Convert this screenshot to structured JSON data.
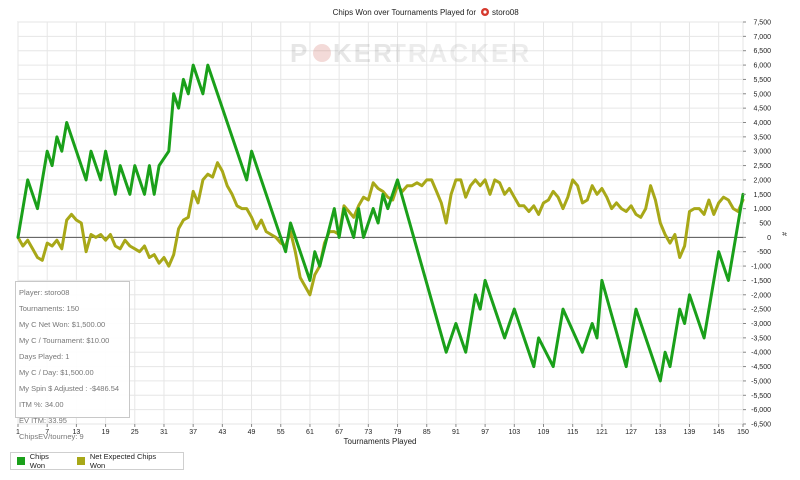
{
  "title": "Chips Won over Tournaments Played for",
  "player_name": "storo08",
  "watermark": {
    "left": "P",
    "middle": "KER",
    "right": "TRACKER"
  },
  "xlabel": "Tournaments Played",
  "y_unit": "#",
  "colors": {
    "chips_won": "#1aa01a",
    "net_expected": "#a8a818",
    "zero_line": "#555555",
    "grid": "#e6e6e6"
  },
  "stats": [
    "Player: storo08",
    "Tournaments: 150",
    "My C Net Won: $1,500.00",
    "My C / Tournament: $10.00",
    "Days Played: 1",
    "My C / Day: $1,500.00",
    "My Spin $ Adjusted : -$486.54",
    "ITM %: 34.00",
    "EV ITM: 33.95",
    "ChipsEV/tourney: 9"
  ],
  "legend": [
    {
      "label": "Chips Won",
      "color": "#1aa01a"
    },
    {
      "label": "Net Expected Chips Won",
      "color": "#a8a818"
    }
  ],
  "chart_data": {
    "type": "line",
    "xlim": [
      1,
      150
    ],
    "ylim": [
      -6500,
      7500
    ],
    "x_ticks": [
      "1",
      "7",
      "13",
      "19",
      "25",
      "31",
      "37",
      "43",
      "49",
      "55",
      "61",
      "67",
      "73",
      "79",
      "85",
      "91",
      "97",
      "103",
      "109",
      "115",
      "121",
      "127",
      "133",
      "139",
      "145",
      "150"
    ],
    "y_ticks": [
      "7,500",
      "7,000",
      "6,500",
      "6,000",
      "5,500",
      "5,000",
      "4,500",
      "4,000",
      "3,500",
      "3,000",
      "2,500",
      "2,000",
      "1,500",
      "1,000",
      "500",
      "0",
      "-500",
      "-1,000",
      "-1,500",
      "-2,000",
      "-2,500",
      "-3,000",
      "-3,500",
      "-4,000",
      "-4,500",
      "-5,000",
      "-5,500",
      "-6,000",
      "-6,500"
    ],
    "series": [
      {
        "name": "Chips Won",
        "points": [
          [
            1,
            0
          ],
          [
            3,
            2000
          ],
          [
            5,
            1000
          ],
          [
            7,
            3000
          ],
          [
            8,
            2500
          ],
          [
            9,
            3500
          ],
          [
            10,
            3000
          ],
          [
            11,
            4000
          ],
          [
            15,
            2000
          ],
          [
            16,
            3000
          ],
          [
            18,
            2000
          ],
          [
            19,
            3000
          ],
          [
            21,
            1500
          ],
          [
            22,
            2500
          ],
          [
            24,
            1500
          ],
          [
            25,
            2500
          ],
          [
            27,
            1500
          ],
          [
            28,
            2500
          ],
          [
            29,
            1500
          ],
          [
            30,
            2500
          ],
          [
            32,
            3000
          ],
          [
            33,
            5000
          ],
          [
            34,
            4500
          ],
          [
            35,
            5500
          ],
          [
            36,
            5000
          ],
          [
            37,
            6000
          ],
          [
            38,
            5500
          ],
          [
            39,
            5000
          ],
          [
            40,
            6000
          ],
          [
            48,
            2000
          ],
          [
            49,
            3000
          ],
          [
            56,
            -500
          ],
          [
            57,
            500
          ],
          [
            61,
            -1500
          ],
          [
            62,
            -500
          ],
          [
            63,
            -1000
          ],
          [
            66,
            1000
          ],
          [
            67,
            0
          ],
          [
            68,
            1000
          ],
          [
            70,
            0
          ],
          [
            71,
            1000
          ],
          [
            72,
            0
          ],
          [
            74,
            1000
          ],
          [
            75,
            500
          ],
          [
            76,
            1500
          ],
          [
            77,
            1000
          ],
          [
            79,
            2000
          ],
          [
            89,
            -4000
          ],
          [
            91,
            -3000
          ],
          [
            93,
            -4000
          ],
          [
            95,
            -2000
          ],
          [
            96,
            -2500
          ],
          [
            97,
            -1500
          ],
          [
            101,
            -3500
          ],
          [
            103,
            -2500
          ],
          [
            107,
            -4500
          ],
          [
            108,
            -3500
          ],
          [
            111,
            -4500
          ],
          [
            113,
            -2500
          ],
          [
            117,
            -4000
          ],
          [
            119,
            -3000
          ],
          [
            120,
            -3500
          ],
          [
            121,
            -1500
          ],
          [
            126,
            -4500
          ],
          [
            128,
            -2500
          ],
          [
            133,
            -5000
          ],
          [
            134,
            -4000
          ],
          [
            135,
            -4500
          ],
          [
            137,
            -2500
          ],
          [
            138,
            -3000
          ],
          [
            139,
            -2000
          ],
          [
            142,
            -3500
          ],
          [
            145,
            -500
          ],
          [
            147,
            -1500
          ],
          [
            150,
            1500
          ]
        ]
      },
      {
        "name": "Net Expected Chips Won",
        "points": [
          [
            1,
            0
          ],
          [
            2,
            -300
          ],
          [
            3,
            -100
          ],
          [
            4,
            -400
          ],
          [
            5,
            -700
          ],
          [
            6,
            -800
          ],
          [
            7,
            -200
          ],
          [
            8,
            -300
          ],
          [
            9,
            -100
          ],
          [
            10,
            -400
          ],
          [
            11,
            600
          ],
          [
            12,
            800
          ],
          [
            13,
            600
          ],
          [
            14,
            500
          ],
          [
            15,
            -500
          ],
          [
            16,
            100
          ],
          [
            17,
            0
          ],
          [
            18,
            100
          ],
          [
            19,
            -100
          ],
          [
            20,
            100
          ],
          [
            21,
            -300
          ],
          [
            22,
            -400
          ],
          [
            23,
            -100
          ],
          [
            24,
            -300
          ],
          [
            25,
            -400
          ],
          [
            26,
            -500
          ],
          [
            27,
            -300
          ],
          [
            28,
            -700
          ],
          [
            29,
            -600
          ],
          [
            30,
            -900
          ],
          [
            31,
            -700
          ],
          [
            32,
            -1000
          ],
          [
            33,
            -600
          ],
          [
            34,
            300
          ],
          [
            35,
            600
          ],
          [
            36,
            700
          ],
          [
            37,
            1600
          ],
          [
            38,
            1200
          ],
          [
            39,
            2000
          ],
          [
            40,
            2200
          ],
          [
            41,
            2100
          ],
          [
            42,
            2600
          ],
          [
            43,
            2300
          ],
          [
            44,
            1800
          ],
          [
            45,
            1500
          ],
          [
            46,
            1100
          ],
          [
            47,
            1000
          ],
          [
            48,
            1000
          ],
          [
            49,
            700
          ],
          [
            50,
            300
          ],
          [
            51,
            600
          ],
          [
            52,
            200
          ],
          [
            53,
            100
          ],
          [
            54,
            0
          ],
          [
            55,
            -200
          ],
          [
            56,
            -300
          ],
          [
            57,
            200
          ],
          [
            58,
            -500
          ],
          [
            59,
            -1400
          ],
          [
            60,
            -1700
          ],
          [
            61,
            -2000
          ],
          [
            62,
            -1300
          ],
          [
            63,
            -1000
          ],
          [
            64,
            -200
          ],
          [
            65,
            200
          ],
          [
            66,
            200
          ],
          [
            67,
            100
          ],
          [
            68,
            1100
          ],
          [
            69,
            900
          ],
          [
            70,
            700
          ],
          [
            71,
            1100
          ],
          [
            72,
            1400
          ],
          [
            73,
            1300
          ],
          [
            74,
            1900
          ],
          [
            75,
            1700
          ],
          [
            76,
            1600
          ],
          [
            77,
            1400
          ],
          [
            78,
            1300
          ],
          [
            79,
            1800
          ],
          [
            80,
            1600
          ],
          [
            81,
            1800
          ],
          [
            82,
            1800
          ],
          [
            83,
            1900
          ],
          [
            84,
            1800
          ],
          [
            85,
            2000
          ],
          [
            86,
            2000
          ],
          [
            87,
            1600
          ],
          [
            88,
            1200
          ],
          [
            89,
            500
          ],
          [
            90,
            1500
          ],
          [
            91,
            2000
          ],
          [
            92,
            2000
          ],
          [
            93,
            1400
          ],
          [
            94,
            1800
          ],
          [
            95,
            2000
          ],
          [
            96,
            1800
          ],
          [
            97,
            2000
          ],
          [
            98,
            1500
          ],
          [
            99,
            2000
          ],
          [
            100,
            1900
          ],
          [
            101,
            1500
          ],
          [
            102,
            1700
          ],
          [
            103,
            1400
          ],
          [
            104,
            1100
          ],
          [
            105,
            1100
          ],
          [
            106,
            900
          ],
          [
            107,
            1100
          ],
          [
            108,
            800
          ],
          [
            109,
            1200
          ],
          [
            110,
            1300
          ],
          [
            111,
            1600
          ],
          [
            112,
            1400
          ],
          [
            113,
            1000
          ],
          [
            114,
            1400
          ],
          [
            115,
            2000
          ],
          [
            116,
            1800
          ],
          [
            117,
            1200
          ],
          [
            118,
            1300
          ],
          [
            119,
            1800
          ],
          [
            120,
            1500
          ],
          [
            121,
            1700
          ],
          [
            122,
            1400
          ],
          [
            123,
            1000
          ],
          [
            124,
            1200
          ],
          [
            125,
            1000
          ],
          [
            126,
            900
          ],
          [
            127,
            1100
          ],
          [
            128,
            800
          ],
          [
            129,
            700
          ],
          [
            130,
            1000
          ],
          [
            131,
            1800
          ],
          [
            132,
            1300
          ],
          [
            133,
            500
          ],
          [
            134,
            100
          ],
          [
            135,
            -200
          ],
          [
            136,
            100
          ],
          [
            137,
            -700
          ],
          [
            138,
            -300
          ],
          [
            139,
            900
          ],
          [
            140,
            1000
          ],
          [
            141,
            1000
          ],
          [
            142,
            800
          ],
          [
            143,
            1300
          ],
          [
            144,
            800
          ],
          [
            145,
            1200
          ],
          [
            146,
            1400
          ],
          [
            147,
            1300
          ],
          [
            148,
            1000
          ],
          [
            149,
            900
          ],
          [
            150,
            1300
          ]
        ]
      }
    ]
  }
}
